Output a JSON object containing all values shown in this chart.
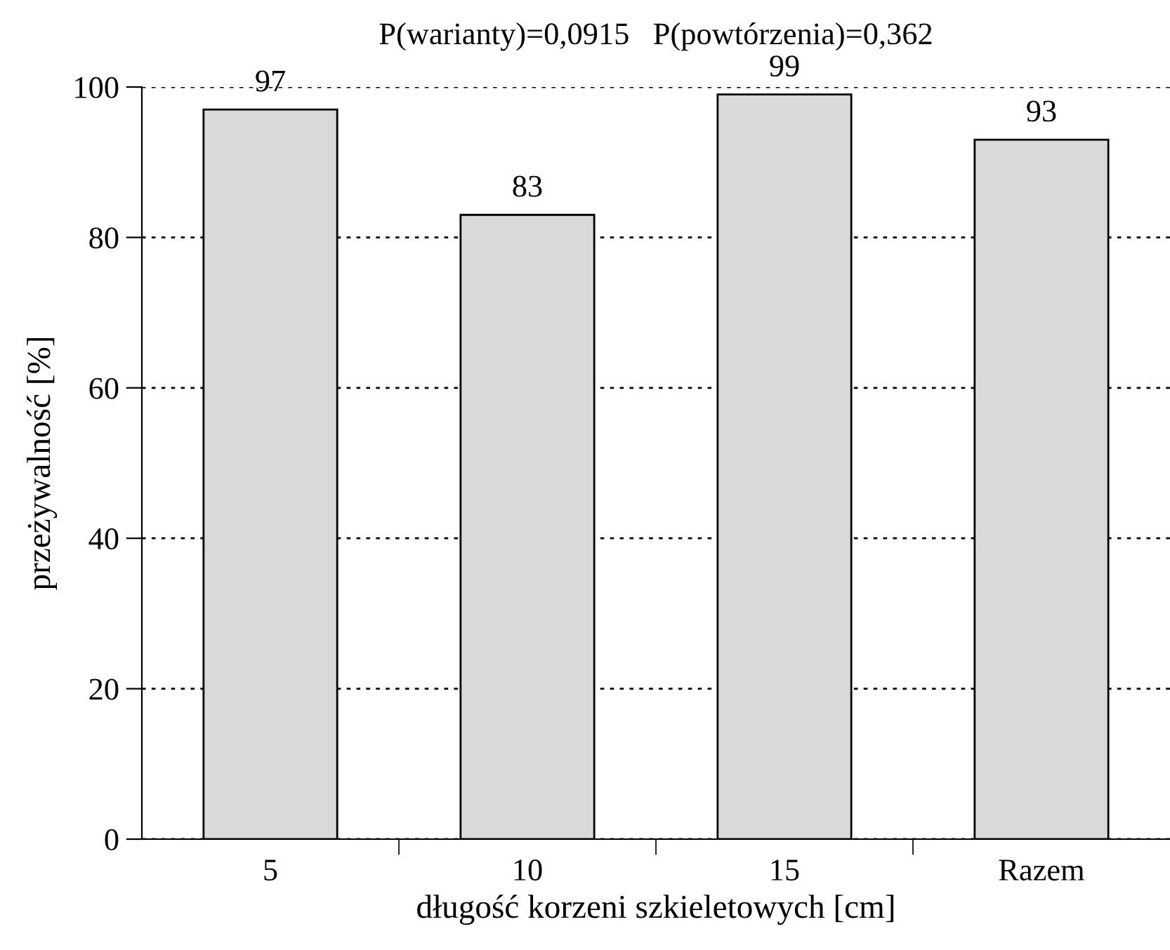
{
  "chart_data": {
    "type": "bar",
    "title": "P(warianty)=0,0915   P(powtórzenia)=0,362",
    "xlabel": "długość korzeni szkieletowych [cm]",
    "ylabel": "przeżywalność [%]",
    "categories": [
      "5",
      "10",
      "15",
      "Razem"
    ],
    "values": [
      97,
      83,
      99,
      93
    ],
    "color": "#d9d9d9",
    "ylim": [
      0,
      100
    ],
    "yticks": [
      0,
      20,
      40,
      60,
      80,
      100
    ],
    "grid": "y",
    "data_labels": true
  }
}
